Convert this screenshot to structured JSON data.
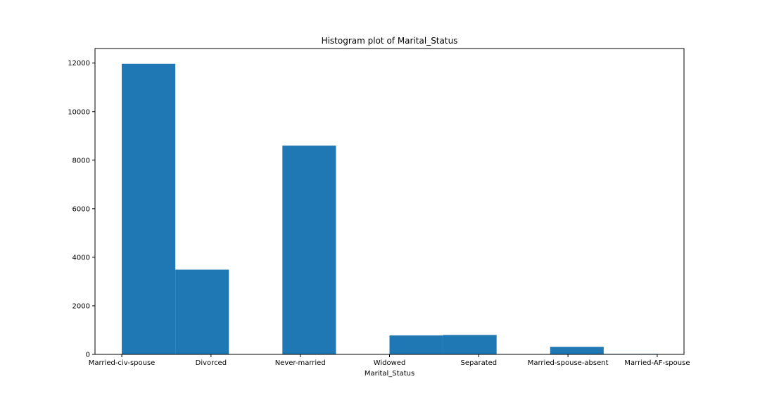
{
  "chart_data": {
    "type": "bar",
    "title": "Histogram plot of Marital_Status",
    "xlabel": "Marital_Status",
    "ylabel": "",
    "ylim": [
      0,
      12600
    ],
    "yticks": [
      0,
      2000,
      4000,
      6000,
      8000,
      10000,
      12000
    ],
    "xrange": [
      -0.3,
      6.3
    ],
    "category_ticks": [
      {
        "label": "Married-civ-spouse",
        "pos": 0
      },
      {
        "label": "Divorced",
        "pos": 1
      },
      {
        "label": "Never-married",
        "pos": 2
      },
      {
        "label": "Widowed",
        "pos": 3
      },
      {
        "label": "Separated",
        "pos": 4
      },
      {
        "label": "Married-spouse-absent",
        "pos": 5
      },
      {
        "label": "Married-AF-spouse",
        "pos": 6
      }
    ],
    "bins": [
      {
        "start": 0.0,
        "end": 0.6,
        "count": 11970
      },
      {
        "start": 0.6,
        "end": 1.2,
        "count": 3490
      },
      {
        "start": 1.2,
        "end": 1.8,
        "count": 0
      },
      {
        "start": 1.8,
        "end": 2.4,
        "count": 8600
      },
      {
        "start": 2.4,
        "end": 3.0,
        "count": 0
      },
      {
        "start": 3.0,
        "end": 3.6,
        "count": 780
      },
      {
        "start": 3.6,
        "end": 4.2,
        "count": 800
      },
      {
        "start": 4.2,
        "end": 4.8,
        "count": 0
      },
      {
        "start": 4.8,
        "end": 5.4,
        "count": 310
      },
      {
        "start": 5.4,
        "end": 6.0,
        "count": 20
      }
    ],
    "bar_color": "#1f77b4",
    "grid": false,
    "legend": "none"
  }
}
